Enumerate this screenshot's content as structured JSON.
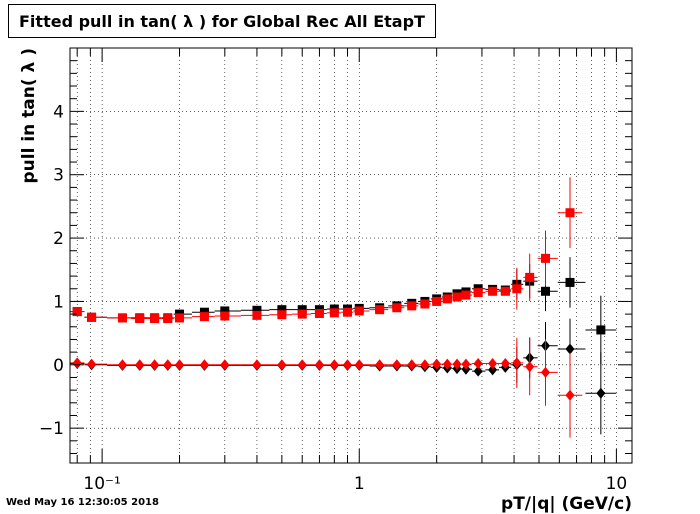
{
  "chart_data": {
    "type": "scatter",
    "title": "Fitted pull in tan( λ ) for Global Rec All EtapT",
    "xlabel": "pT/|q| (GeV/c)",
    "ylabel": "pull in tan( λ )",
    "x_scale": "log",
    "xlim": [
      0.075,
      11.5
    ],
    "ylim": [
      -1.55,
      5.0
    ],
    "grid": true,
    "x_ticks": [
      {
        "v": 0.1,
        "label": "10⁻¹"
      },
      {
        "v": 1,
        "label": "1"
      },
      {
        "v": 10,
        "label": "10"
      }
    ],
    "y_ticks": [
      -1,
      0,
      1,
      2,
      3,
      4
    ],
    "timestamp": "Wed May 16 12:30:05 2018",
    "series": [
      {
        "color": "#000000",
        "marker": "square",
        "points": [
          {
            "x": 0.08,
            "y": 0.84
          },
          {
            "x": 0.091,
            "y": 0.75
          },
          {
            "x": 0.12,
            "y": 0.74
          },
          {
            "x": 0.14,
            "y": 0.74
          },
          {
            "x": 0.16,
            "y": 0.74
          },
          {
            "x": 0.18,
            "y": 0.74
          },
          {
            "x": 0.2,
            "y": 0.8
          },
          {
            "x": 0.25,
            "y": 0.83
          },
          {
            "x": 0.3,
            "y": 0.85
          },
          {
            "x": 0.4,
            "y": 0.86
          },
          {
            "x": 0.5,
            "y": 0.87
          },
          {
            "x": 0.6,
            "y": 0.87
          },
          {
            "x": 0.7,
            "y": 0.87
          },
          {
            "x": 0.8,
            "y": 0.88
          },
          {
            "x": 0.9,
            "y": 0.88
          },
          {
            "x": 1.0,
            "y": 0.89
          },
          {
            "x": 1.2,
            "y": 0.9
          },
          {
            "x": 1.4,
            "y": 0.93
          },
          {
            "x": 1.6,
            "y": 0.97
          },
          {
            "x": 1.8,
            "y": 1.0
          },
          {
            "x": 2.0,
            "y": 1.04
          },
          {
            "x": 2.2,
            "y": 1.07
          },
          {
            "x": 2.4,
            "y": 1.12
          },
          {
            "x": 2.6,
            "y": 1.15
          },
          {
            "x": 2.9,
            "y": 1.2
          },
          {
            "x": 3.3,
            "y": 1.19
          },
          {
            "x": 3.7,
            "y": 1.18
          },
          {
            "x": 4.1,
            "y": 1.27
          },
          {
            "x": 4.6,
            "y": 1.32
          },
          {
            "x": 5.3,
            "y": 1.16
          },
          {
            "x": 6.6,
            "y": 1.3
          },
          {
            "x": 8.7,
            "y": 0.55
          }
        ]
      },
      {
        "color": "#ff0000",
        "marker": "square",
        "points": [
          {
            "x": 0.08,
            "y": 0.84
          },
          {
            "x": 0.091,
            "y": 0.75
          },
          {
            "x": 0.12,
            "y": 0.74
          },
          {
            "x": 0.14,
            "y": 0.73
          },
          {
            "x": 0.16,
            "y": 0.73
          },
          {
            "x": 0.18,
            "y": 0.73
          },
          {
            "x": 0.2,
            "y": 0.74
          },
          {
            "x": 0.25,
            "y": 0.76
          },
          {
            "x": 0.3,
            "y": 0.77
          },
          {
            "x": 0.4,
            "y": 0.78
          },
          {
            "x": 0.5,
            "y": 0.79
          },
          {
            "x": 0.6,
            "y": 0.8
          },
          {
            "x": 0.7,
            "y": 0.81
          },
          {
            "x": 0.8,
            "y": 0.82
          },
          {
            "x": 0.9,
            "y": 0.83
          },
          {
            "x": 1.0,
            "y": 0.85
          },
          {
            "x": 1.2,
            "y": 0.87
          },
          {
            "x": 1.4,
            "y": 0.9
          },
          {
            "x": 1.6,
            "y": 0.93
          },
          {
            "x": 1.8,
            "y": 0.96
          },
          {
            "x": 2.0,
            "y": 1.0
          },
          {
            "x": 2.2,
            "y": 1.04
          },
          {
            "x": 2.4,
            "y": 1.07
          },
          {
            "x": 2.6,
            "y": 1.1
          },
          {
            "x": 2.9,
            "y": 1.14
          },
          {
            "x": 3.3,
            "y": 1.16
          },
          {
            "x": 3.7,
            "y": 1.16
          },
          {
            "x": 4.1,
            "y": 1.2
          },
          {
            "x": 4.6,
            "y": 1.38
          },
          {
            "x": 5.3,
            "y": 1.68
          },
          {
            "x": 6.6,
            "y": 2.4
          }
        ]
      },
      {
        "color": "#000000",
        "marker": "diamond",
        "points": [
          {
            "x": 0.08,
            "y": 0.02
          },
          {
            "x": 0.091,
            "y": 0.0
          },
          {
            "x": 0.12,
            "y": -0.01
          },
          {
            "x": 0.14,
            "y": -0.01
          },
          {
            "x": 0.16,
            "y": -0.01
          },
          {
            "x": 0.18,
            "y": -0.01
          },
          {
            "x": 0.2,
            "y": -0.01
          },
          {
            "x": 0.25,
            "y": -0.01
          },
          {
            "x": 0.3,
            "y": -0.01
          },
          {
            "x": 0.4,
            "y": -0.01
          },
          {
            "x": 0.5,
            "y": -0.01
          },
          {
            "x": 0.6,
            "y": -0.01
          },
          {
            "x": 0.7,
            "y": -0.01
          },
          {
            "x": 0.8,
            "y": -0.01
          },
          {
            "x": 0.9,
            "y": -0.01
          },
          {
            "x": 1.0,
            "y": -0.01
          },
          {
            "x": 1.2,
            "y": -0.02
          },
          {
            "x": 1.4,
            "y": -0.02
          },
          {
            "x": 1.6,
            "y": -0.02
          },
          {
            "x": 1.8,
            "y": -0.03
          },
          {
            "x": 2.0,
            "y": -0.04
          },
          {
            "x": 2.2,
            "y": -0.05
          },
          {
            "x": 2.4,
            "y": -0.06
          },
          {
            "x": 2.6,
            "y": -0.07
          },
          {
            "x": 2.9,
            "y": -0.1
          },
          {
            "x": 3.3,
            "y": -0.08
          },
          {
            "x": 3.7,
            "y": -0.04
          },
          {
            "x": 4.1,
            "y": 0.0
          },
          {
            "x": 4.6,
            "y": 0.11
          },
          {
            "x": 5.3,
            "y": 0.3
          },
          {
            "x": 6.6,
            "y": 0.25
          },
          {
            "x": 8.7,
            "y": -0.45
          }
        ]
      },
      {
        "color": "#ff0000",
        "marker": "diamond",
        "points": [
          {
            "x": 0.08,
            "y": 0.03
          },
          {
            "x": 0.091,
            "y": 0.01
          },
          {
            "x": 0.12,
            "y": 0.0
          },
          {
            "x": 0.14,
            "y": 0.0
          },
          {
            "x": 0.16,
            "y": 0.0
          },
          {
            "x": 0.18,
            "y": 0.0
          },
          {
            "x": 0.2,
            "y": 0.0
          },
          {
            "x": 0.25,
            "y": 0.0
          },
          {
            "x": 0.3,
            "y": 0.0
          },
          {
            "x": 0.4,
            "y": 0.0
          },
          {
            "x": 0.5,
            "y": 0.0
          },
          {
            "x": 0.6,
            "y": 0.0
          },
          {
            "x": 0.7,
            "y": 0.0
          },
          {
            "x": 0.8,
            "y": 0.0
          },
          {
            "x": 0.9,
            "y": 0.0
          },
          {
            "x": 1.0,
            "y": 0.0
          },
          {
            "x": 1.2,
            "y": 0.0
          },
          {
            "x": 1.4,
            "y": 0.0
          },
          {
            "x": 1.6,
            "y": 0.0
          },
          {
            "x": 1.8,
            "y": 0.0
          },
          {
            "x": 2.0,
            "y": 0.01
          },
          {
            "x": 2.2,
            "y": 0.01
          },
          {
            "x": 2.4,
            "y": 0.01
          },
          {
            "x": 2.6,
            "y": 0.01
          },
          {
            "x": 2.9,
            "y": 0.02
          },
          {
            "x": 3.3,
            "y": 0.02
          },
          {
            "x": 3.7,
            "y": 0.02
          },
          {
            "x": 4.1,
            "y": 0.03
          },
          {
            "x": 4.6,
            "y": -0.03
          },
          {
            "x": 5.3,
            "y": -0.12
          },
          {
            "x": 6.6,
            "y": -0.48
          }
        ]
      }
    ]
  }
}
